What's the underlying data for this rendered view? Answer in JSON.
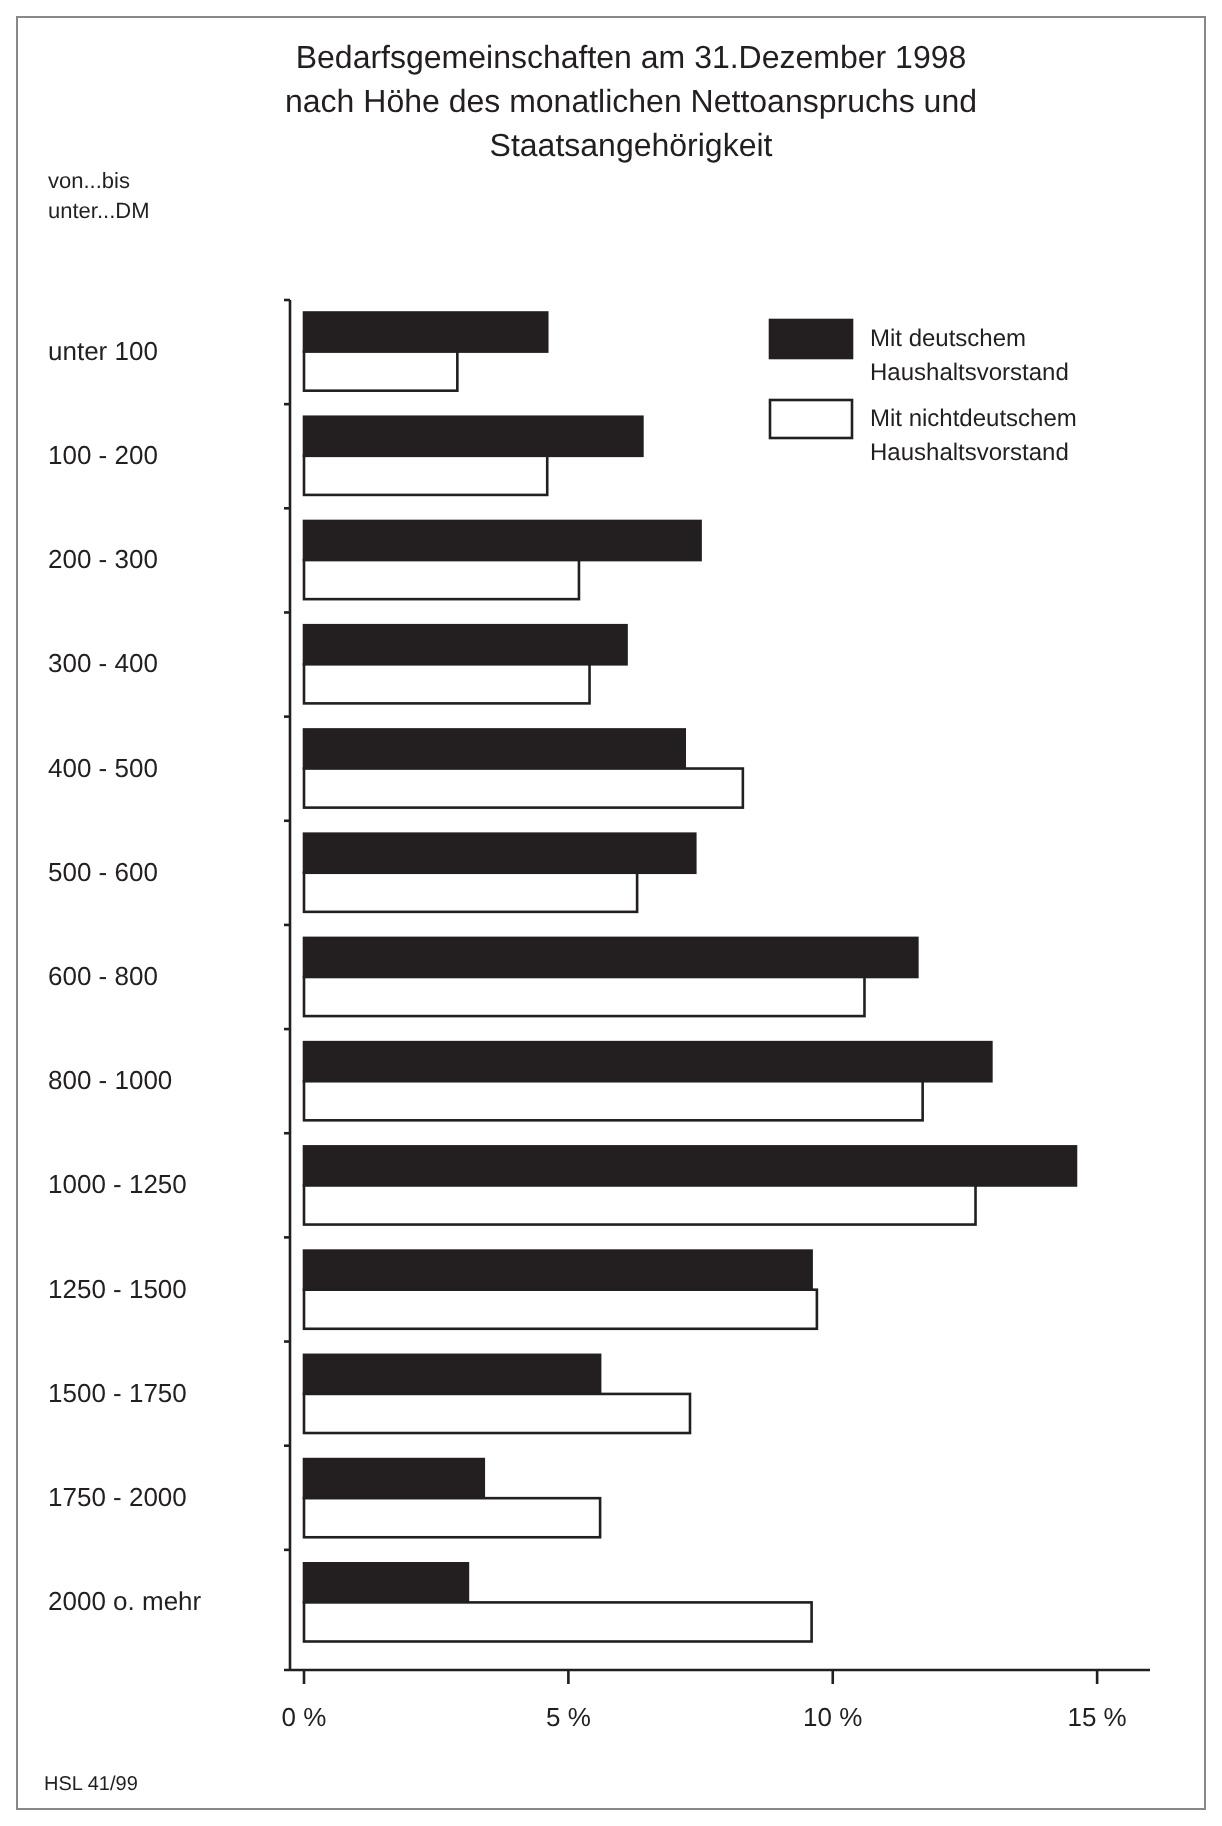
{
  "chart_data": {
    "type": "bar",
    "orientation": "horizontal",
    "title": "Bedarfsgemeinschaften am 31.Dezember 1998 nach Höhe des monatlichen Nettoanspruchs und Staatsangehörigkeit",
    "ylabel": "von...bis unter...DM",
    "categories": [
      "unter 100",
      "100 - 200",
      "200 - 300",
      "300 - 400",
      "400 - 500",
      "500 - 600",
      "600 - 800",
      "800 - 1000",
      "1000 - 1250",
      "1250 - 1500",
      "1500 - 1750",
      "1750 - 2000",
      "2000 o. mehr"
    ],
    "series": [
      {
        "name": "Mit deutschem Haushaltsvorstand",
        "color": "#231f20",
        "values": [
          4.6,
          6.4,
          7.5,
          6.1,
          7.2,
          7.4,
          11.6,
          13.0,
          14.6,
          9.6,
          5.6,
          3.4,
          3.1
        ]
      },
      {
        "name": "Mit nichtdeutschem Haushaltsvorstand",
        "color": "#ffffff",
        "values": [
          2.9,
          4.6,
          5.2,
          5.4,
          8.3,
          6.3,
          10.6,
          11.7,
          12.7,
          9.7,
          7.3,
          5.6,
          9.6
        ]
      }
    ],
    "xlim": [
      0,
      16
    ],
    "xticks": [
      {
        "value": 0,
        "label": "0 %"
      },
      {
        "value": 5,
        "label": "5 %"
      },
      {
        "value": 10,
        "label": "10 %"
      },
      {
        "value": 15,
        "label": "15 %"
      }
    ],
    "grid": false,
    "legend": "top right",
    "annotations": [
      "HSL 41/99"
    ]
  }
}
